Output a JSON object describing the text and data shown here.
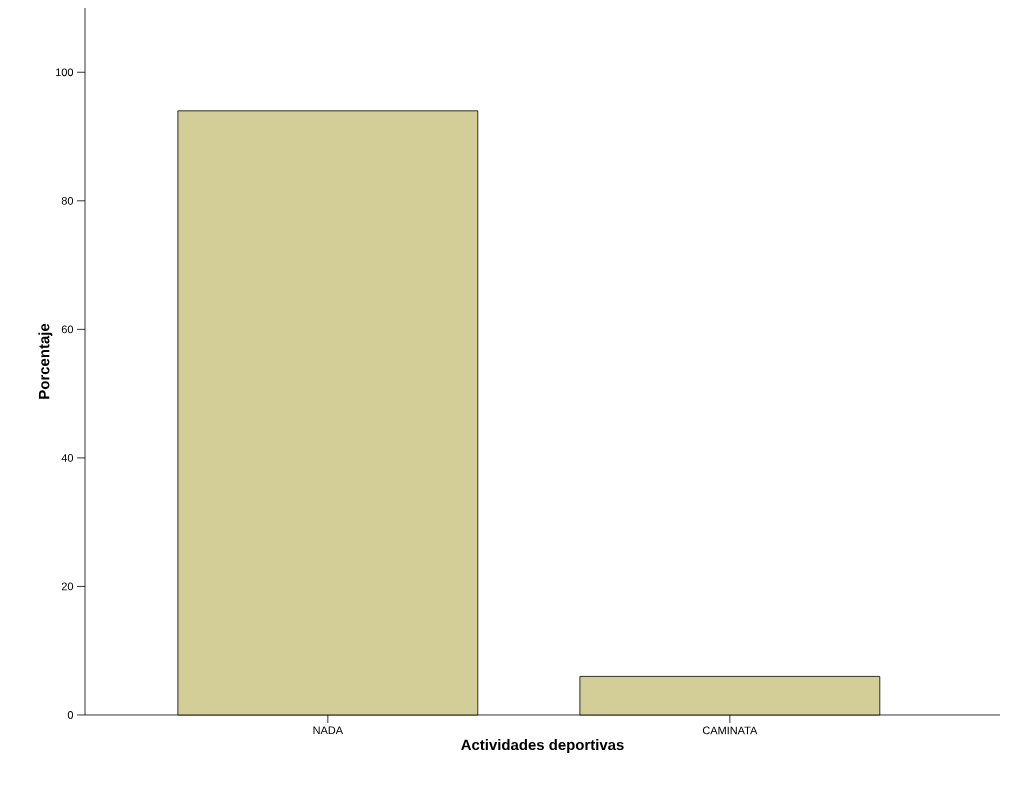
{
  "chart_data": {
    "type": "bar",
    "xlabel": "Actividades deportivas",
    "ylabel": "Porcentaje",
    "categories": [
      "NADA",
      "CAMINATA"
    ],
    "values": [
      94.0,
      6.0
    ],
    "color": "#d3cd98",
    "ylim": [
      0,
      110
    ],
    "yticks": [
      0,
      20,
      40,
      60,
      80,
      100
    ],
    "grid": false
  }
}
